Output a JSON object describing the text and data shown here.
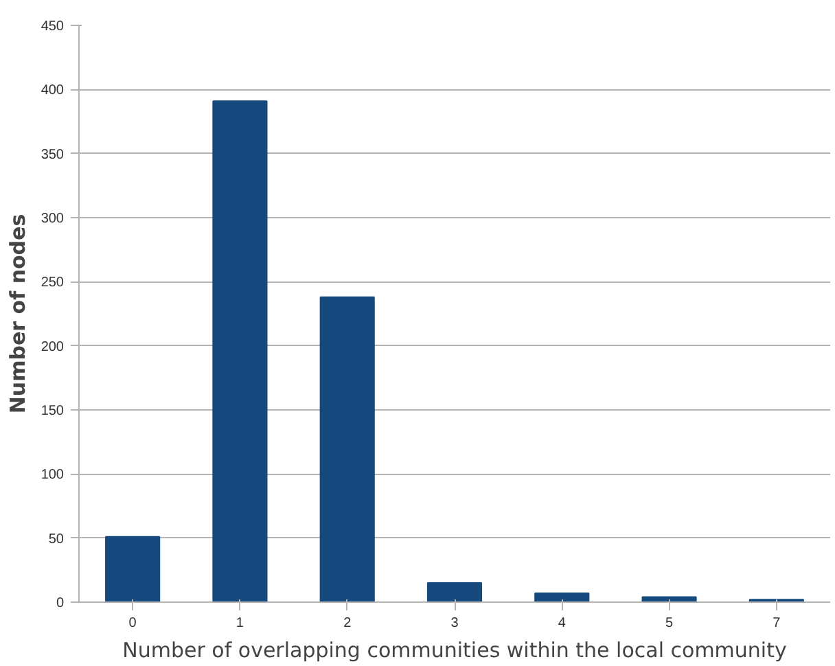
{
  "chart_data": {
    "type": "bar",
    "categories": [
      "0",
      "1",
      "2",
      "3",
      "4",
      "5",
      "7"
    ],
    "values": [
      51,
      391,
      238,
      15,
      7,
      4,
      2
    ],
    "color": "#164a7e",
    "xlabel": "Number of overlapping communities within the local community",
    "ylabel": "Number of nodes",
    "ylim": [
      0,
      450
    ],
    "yticks": [
      0,
      50,
      100,
      150,
      200,
      250,
      300,
      350,
      400,
      450
    ],
    "grid": "y"
  }
}
